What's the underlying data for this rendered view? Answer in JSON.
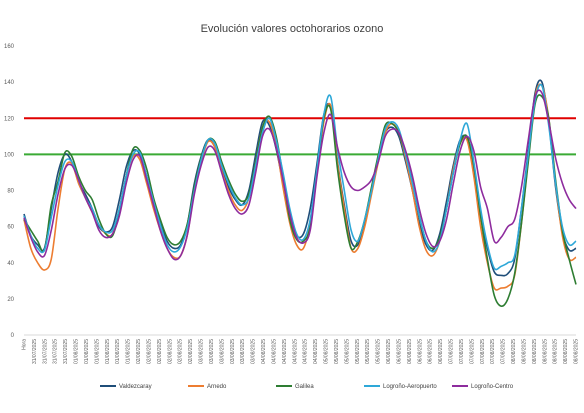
{
  "chart_data": {
    "type": "line",
    "title": "Evolución valores octohorarios ozono",
    "xlabel": "",
    "ylabel": "",
    "ylim": [
      0,
      160
    ],
    "yticks": [
      0,
      20,
      40,
      60,
      80,
      100,
      120,
      140,
      160
    ],
    "grid": false,
    "legend_position": "bottom",
    "x_tick_labels": [
      "Hora",
      "31/07/2025",
      "31/07/2025",
      "31/07/2025",
      "31/07/2025",
      "01/08/2025",
      "01/08/2025",
      "01/08/2025",
      "01/08/2025",
      "01/08/2025",
      "01/08/2025",
      "02/08/2025",
      "02/08/2025",
      "02/08/2025",
      "02/08/2025",
      "02/08/2025",
      "02/08/2025",
      "03/08/2025",
      "03/08/2025",
      "03/08/2025",
      "03/08/2025",
      "03/08/2025",
      "03/08/2025",
      "04/08/2025",
      "04/08/2025",
      "04/08/2025",
      "04/08/2025",
      "04/08/2025",
      "04/08/2025",
      "05/08/2025",
      "05/08/2025",
      "05/08/2025",
      "05/08/2025",
      "05/08/2025",
      "05/08/2025",
      "06/08/2025",
      "06/08/2025",
      "06/08/2025",
      "06/08/2025",
      "06/08/2025",
      "06/08/2025",
      "07/08/2025",
      "07/08/2025",
      "07/08/2025",
      "07/08/2025",
      "07/08/2025",
      "07/08/2025",
      "08/08/2025",
      "08/08/2025",
      "08/08/2025",
      "08/08/2025",
      "08/08/2025",
      "08/08/2025",
      "08/08/2025"
    ],
    "reference_lines": [
      {
        "value": 120,
        "color": "#e00000"
      },
      {
        "value": 100,
        "color": "#3aaa35"
      }
    ],
    "series": [
      {
        "name": "Valdezcaray",
        "color": "#1f4e79",
        "values": [
          67,
          55,
          50,
          48,
          70,
          90,
          100,
          96,
          85,
          78,
          70,
          60,
          57,
          60,
          75,
          93,
          102,
          100,
          88,
          74,
          62,
          52,
          48,
          50,
          62,
          84,
          99,
          108,
          104,
          92,
          82,
          75,
          72,
          80,
          100,
          118,
          116,
          103,
          84,
          65,
          55,
          56,
          70,
          95,
          122,
          126,
          96,
          72,
          52,
          50,
          62,
          80,
          98,
          112,
          115,
          110,
          96,
          80,
          62,
          50,
          47,
          56,
          74,
          94,
          108,
          109,
          92,
          66,
          48,
          35,
          33,
          34,
          42,
          70,
          102,
          134,
          140,
          118,
          82,
          57,
          47,
          48
        ]
      },
      {
        "name": "Arnedo",
        "color": "#ed7d31",
        "values": [
          64,
          48,
          40,
          36,
          42,
          70,
          92,
          95,
          84,
          76,
          68,
          61,
          56,
          56,
          70,
          88,
          99,
          97,
          84,
          70,
          58,
          48,
          43,
          44,
          56,
          80,
          96,
          107,
          104,
          91,
          80,
          72,
          69,
          76,
          96,
          115,
          118,
          105,
          82,
          62,
          50,
          48,
          62,
          90,
          118,
          127,
          95,
          70,
          48,
          48,
          60,
          78,
          96,
          112,
          117,
          112,
          98,
          80,
          60,
          47,
          44,
          52,
          70,
          92,
          106,
          108,
          88,
          60,
          40,
          26,
          26,
          27,
          33,
          62,
          98,
          132,
          138,
          120,
          84,
          55,
          42,
          43
        ]
      },
      {
        "name": "Galilea",
        "color": "#2e7d32",
        "values": [
          64,
          58,
          52,
          47,
          72,
          85,
          101,
          99,
          88,
          80,
          75,
          64,
          56,
          55,
          68,
          88,
          103,
          102,
          92,
          76,
          64,
          54,
          50,
          52,
          62,
          82,
          98,
          108,
          107,
          96,
          86,
          78,
          74,
          78,
          96,
          115,
          121,
          110,
          88,
          64,
          53,
          52,
          60,
          90,
          120,
          125,
          92,
          66,
          48,
          52,
          64,
          82,
          100,
          116,
          117,
          112,
          100,
          86,
          66,
          52,
          48,
          54,
          70,
          90,
          106,
          110,
          94,
          66,
          42,
          22,
          16,
          20,
          34,
          62,
          96,
          128,
          132,
          120,
          86,
          58,
          42,
          28
        ]
      },
      {
        "name": "Logroño-Aeropuerto",
        "color": "#2ea8d8",
        "values": [
          66,
          55,
          48,
          47,
          65,
          83,
          96,
          96,
          86,
          76,
          70,
          61,
          57,
          58,
          70,
          88,
          100,
          101,
          88,
          74,
          61,
          50,
          46,
          49,
          60,
          80,
          97,
          108,
          106,
          94,
          84,
          76,
          72,
          76,
          94,
          112,
          120,
          108,
          90,
          70,
          56,
          53,
          64,
          92,
          122,
          132,
          103,
          80,
          58,
          52,
          64,
          80,
          98,
          114,
          118,
          114,
          100,
          84,
          66,
          52,
          46,
          52,
          70,
          90,
          108,
          117,
          96,
          70,
          50,
          37,
          38,
          40,
          44,
          70,
          100,
          130,
          138,
          116,
          84,
          60,
          50,
          52
        ]
      },
      {
        "name": "Logroño-Centro",
        "color": "#8e2c9e",
        "values": [
          65,
          54,
          46,
          44,
          58,
          78,
          92,
          94,
          86,
          76,
          68,
          58,
          54,
          56,
          66,
          84,
          97,
          99,
          86,
          72,
          58,
          48,
          42,
          44,
          56,
          78,
          94,
          104,
          102,
          90,
          78,
          70,
          67,
          72,
          90,
          110,
          114,
          104,
          86,
          67,
          54,
          51,
          58,
          88,
          112,
          122,
          104,
          90,
          82,
          80,
          82,
          86,
          96,
          110,
          114,
          112,
          102,
          88,
          70,
          56,
          49,
          52,
          64,
          84,
          102,
          110,
          102,
          82,
          70,
          52,
          54,
          60,
          64,
          82,
          108,
          132,
          134,
          118,
          98,
          84,
          75,
          70
        ]
      }
    ]
  }
}
